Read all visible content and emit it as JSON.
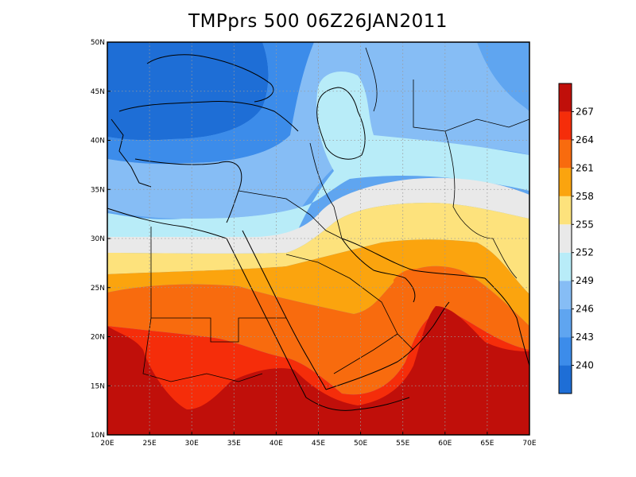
{
  "title": "TMPprs 500 06Z26JAN2011",
  "map": {
    "lon_range": [
      20,
      70
    ],
    "lat_range": [
      10,
      50
    ],
    "x_ticks": [
      "20E",
      "25E",
      "30E",
      "35E",
      "40E",
      "45E",
      "50E",
      "55E",
      "60E",
      "65E",
      "70E"
    ],
    "y_ticks": [
      "10N",
      "15N",
      "20N",
      "25N",
      "30N",
      "35N",
      "40N",
      "45N",
      "50N"
    ],
    "grid": "dotted"
  },
  "colorbar": {
    "labels": [
      "240",
      "243",
      "246",
      "249",
      "252",
      "255",
      "258",
      "261",
      "264",
      "267"
    ],
    "colors": [
      "#1e6ed6",
      "#3c8cea",
      "#5fa5f0",
      "#86bdf5",
      "#b8ecf8",
      "#e9e9e9",
      "#fde27c",
      "#fba40e",
      "#f86b0e",
      "#f52d0a",
      "#c00f0a"
    ]
  }
}
